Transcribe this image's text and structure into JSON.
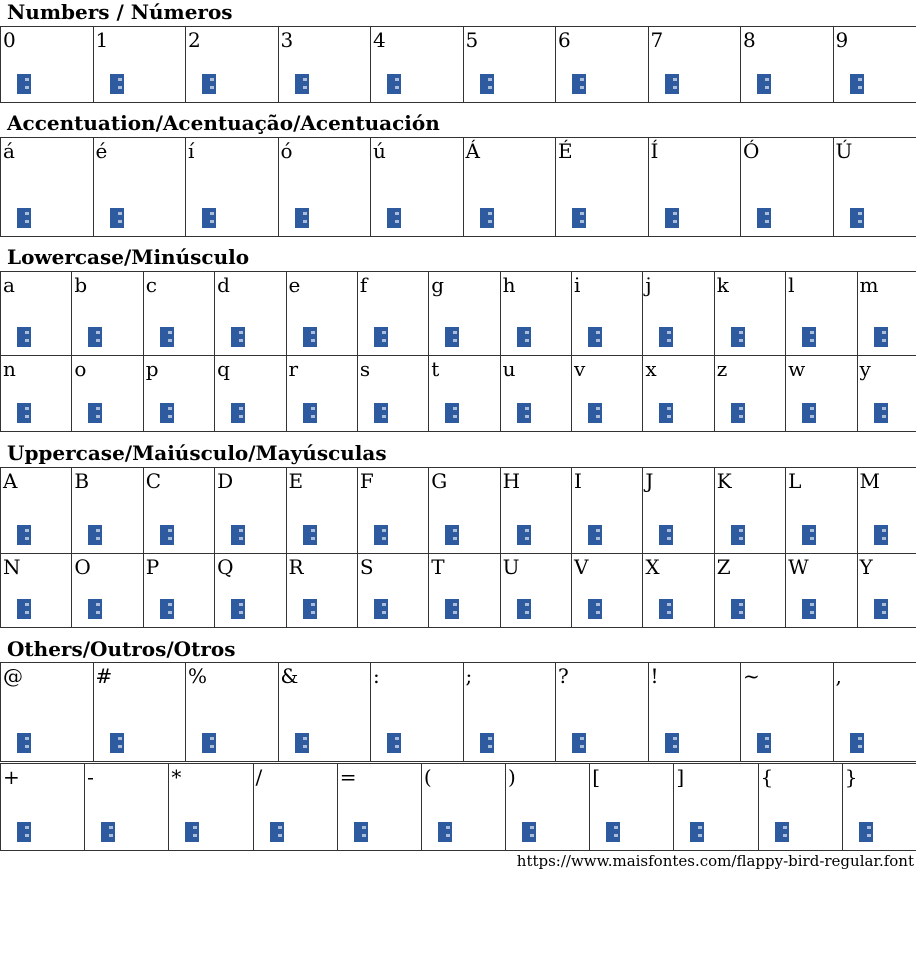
{
  "glyph_color": "#2e5aa0",
  "sections": [
    {
      "title": "Numbers / Números",
      "rows": [
        [
          "0",
          "1",
          "2",
          "3",
          "4",
          "5",
          "6",
          "7",
          "8",
          "9"
        ]
      ]
    },
    {
      "title": "Accentuation/Acentuação/Acentuación",
      "rows": [
        [
          "á",
          "é",
          "í",
          "ó",
          "ú",
          "Á",
          "É",
          "Í",
          "Ó",
          "Ú"
        ]
      ]
    },
    {
      "title": "Lowercase/Minúsculo",
      "rows": [
        [
          "a",
          "b",
          "c",
          "d",
          "e",
          "f",
          "g",
          "h",
          "i",
          "j",
          "k",
          "l",
          "m"
        ],
        [
          "n",
          "o",
          "p",
          "q",
          "r",
          "s",
          "t",
          "u",
          "v",
          "x",
          "z",
          "w",
          "y"
        ]
      ]
    },
    {
      "title": "Uppercase/Maiúsculo/Mayúsculas",
      "rows": [
        [
          "A",
          "B",
          "C",
          "D",
          "E",
          "F",
          "G",
          "H",
          "I",
          "J",
          "K",
          "L",
          "M"
        ],
        [
          "N",
          "O",
          "P",
          "Q",
          "R",
          "S",
          "T",
          "U",
          "V",
          "X",
          "Z",
          "W",
          "Y"
        ]
      ]
    },
    {
      "title": "Others/Outros/Otros",
      "rows": [
        [
          "@",
          "#",
          "%",
          "&",
          ":",
          ";",
          "?",
          "!",
          "~",
          ","
        ],
        [
          "+",
          "-",
          "*",
          "/",
          "=",
          "(",
          ")",
          "[",
          "]",
          "{",
          "}"
        ]
      ]
    }
  ],
  "footer_url": "https://www.maisfontes.com/flappy-bird-regular.font"
}
